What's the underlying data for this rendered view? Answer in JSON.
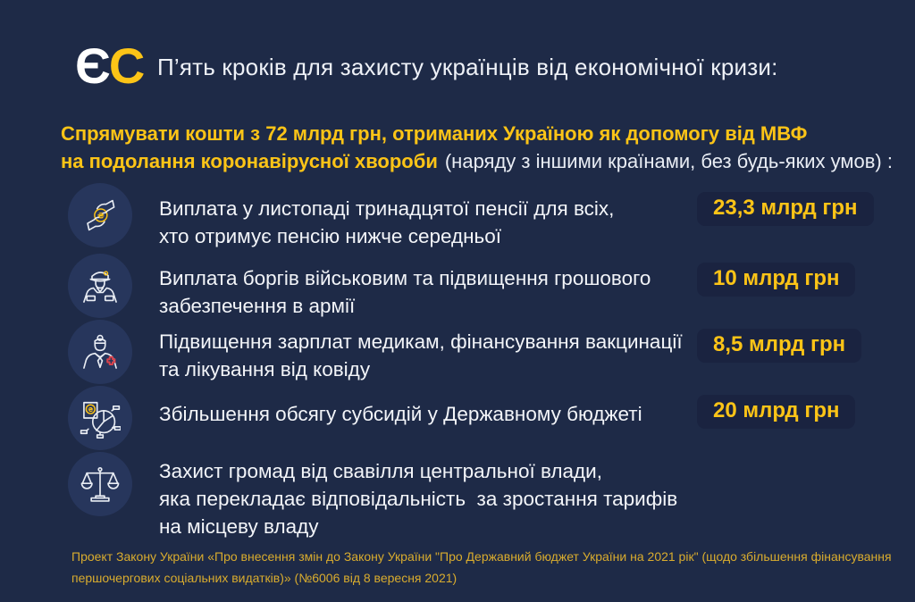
{
  "colors": {
    "background": "#1e2a47",
    "accent_yellow": "#fcc417",
    "badge_background": "#1a2340",
    "icon_circle": "#27365c",
    "text_white": "#f3f5f9",
    "footer_yellow": "#d9ac2e",
    "cross_red": "#d8414b",
    "icon_stroke": "#e9edf4"
  },
  "logo": {
    "part1": "Є",
    "part2": "С"
  },
  "header": {
    "title": "П’ять кроків для захисту українців від економічної кризи:"
  },
  "intro": {
    "highlight_lines": [
      "Спрямувати кошти з 72 млрд грн, отриманих Україною як допомогу від МВФ",
      "на подолання коронавірусної хвороби"
    ],
    "note": "(наряду з іншими країнами, без будь-яких умов) :"
  },
  "steps": [
    {
      "icon": "hands-coin-icon",
      "lines": [
        "Виплата у листопаді тринадцятої пенсії для всіх,",
        "хто отримує пенсію нижче середньої"
      ],
      "amount": "23,3 млрд грн"
    },
    {
      "icon": "military-officer-icon",
      "lines": [
        "Виплата боргів військовим та підвищення грошового",
        "забезпечення в армії"
      ],
      "amount": "10 млрд грн"
    },
    {
      "icon": "doctor-icon",
      "lines": [
        "Підвищення зарплат медикам, фінансування вакцинації",
        "та лікування від ковіду"
      ],
      "amount": "8,5 млрд грн"
    },
    {
      "icon": "pie-chart-coin-icon",
      "lines": [
        "Збільшення обсягу субсидій у Державному бюджеті"
      ],
      "amount": "20 млрд грн"
    },
    {
      "icon": "scales-icon",
      "lines": [
        "Захист громад від свавілля центральної влади,",
        "яка перекладає відповідальність  за зростання тарифів",
        "на місцеву владу"
      ],
      "amount": null
    }
  ],
  "footer": {
    "lines": [
      "Проект Закону України «Про внесення змін до Закону України \"Про Державний бюджет України на 2021 рік\" (щодо збільшення фінансування",
      "першочергових соціальних видатків)» (№6006 від 8 вересня 2021)"
    ]
  }
}
